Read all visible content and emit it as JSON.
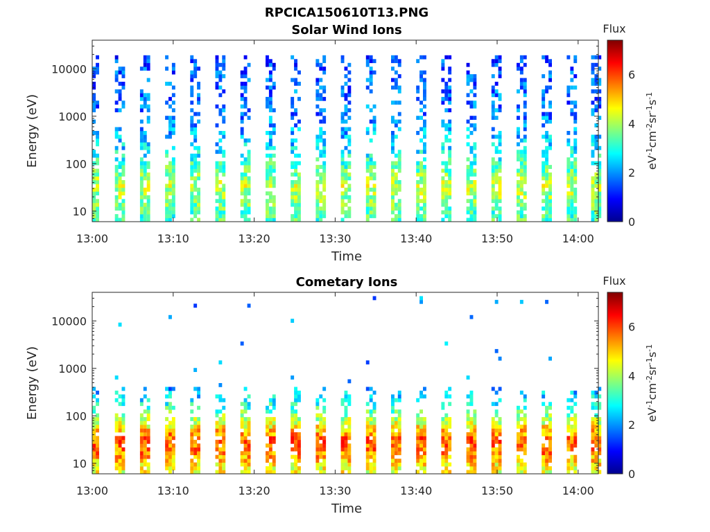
{
  "figure": {
    "title": "RPCICA150610T13.PNG"
  },
  "colors": {
    "colormap": [
      "#00008f",
      "#0000ff",
      "#0080ff",
      "#00ffff",
      "#80ff80",
      "#ffff00",
      "#ff8000",
      "#ff0000",
      "#800000"
    ]
  },
  "chart_data": [
    {
      "type": "heatmap",
      "title": "Solar Wind Ions",
      "xlabel": "Time",
      "ylabel": "Energy (eV)",
      "yscale": "log",
      "ylim": [
        6,
        40000
      ],
      "x_ticks": [
        "13:00",
        "13:10",
        "13:20",
        "13:30",
        "13:40",
        "13:50",
        "14:00"
      ],
      "y_ticks": [
        "10",
        "100",
        "1000",
        "10000"
      ],
      "colorbar": {
        "label": "Flux",
        "units": "eV-1cm-2sr-1s-1",
        "range": [
          0,
          7.4
        ],
        "ticks": [
          "0",
          "2",
          "4",
          "6"
        ]
      },
      "sweep_minutes": [
        0,
        3.2,
        6.3,
        9.4,
        12.5,
        15.6,
        18.7,
        21.8,
        24.9,
        28.0,
        31.1,
        34.2,
        37.3,
        40.4,
        43.5,
        46.6,
        49.7,
        52.8,
        55.9,
        59.0,
        62.0
      ],
      "profile": {
        "energy": [
          8,
          30,
          200,
          1000,
          10000,
          16000
        ],
        "flux": [
          3.3,
          4.2,
          2.5,
          1.8,
          1.5,
          1.4
        ]
      }
    },
    {
      "type": "heatmap",
      "title": "Cometary Ions",
      "xlabel": "Time",
      "ylabel": "Energy (eV)",
      "yscale": "log",
      "ylim": [
        6,
        40000
      ],
      "x_ticks": [
        "13:00",
        "13:10",
        "13:20",
        "13:30",
        "13:40",
        "13:50",
        "14:00"
      ],
      "y_ticks": [
        "10",
        "100",
        "1000",
        "10000"
      ],
      "colorbar": {
        "label": "Flux",
        "units": "eV-1cm-2sr-1s-1",
        "range": [
          0,
          7.4
        ],
        "ticks": [
          "0",
          "2",
          "4",
          "6"
        ]
      },
      "sweep_minutes": [
        0,
        3.2,
        6.3,
        9.4,
        12.5,
        15.6,
        18.7,
        21.8,
        24.9,
        28.0,
        31.1,
        34.2,
        37.3,
        40.4,
        43.5,
        46.6,
        49.7,
        52.8,
        55.9,
        59.0,
        62.0
      ],
      "profile": {
        "energy": [
          7,
          15,
          30,
          60,
          150,
          400
        ],
        "flux": [
          4.5,
          5.5,
          5.8,
          4.5,
          3.0,
          2.0
        ]
      }
    }
  ]
}
